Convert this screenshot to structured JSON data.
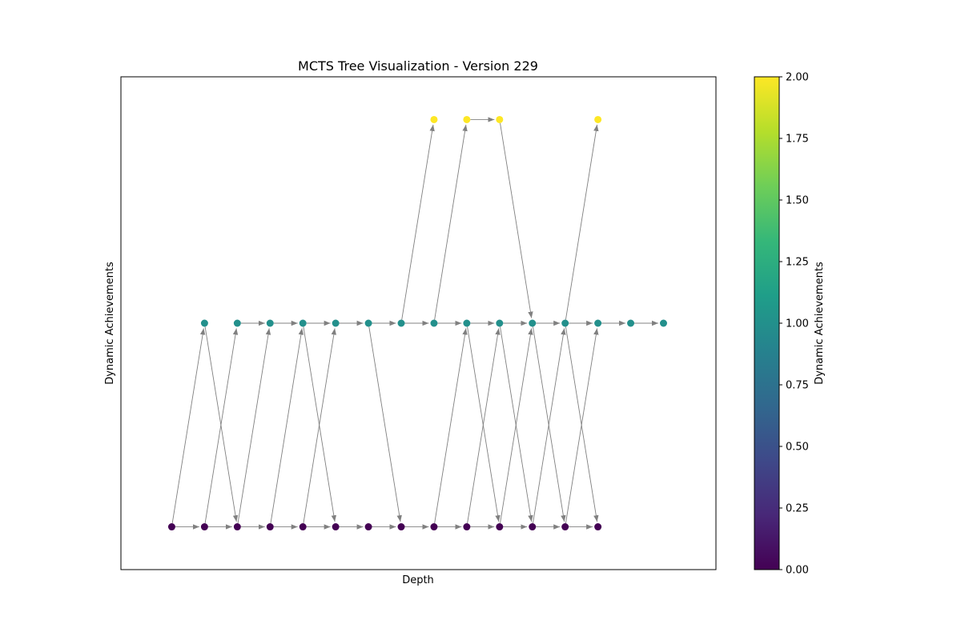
{
  "chart_data": {
    "type": "scatter",
    "title": "MCTS Tree Visualization - Version 229",
    "xlabel": "Depth",
    "ylabel": "Dynamic Achievements",
    "xlim": [
      -1.55,
      16.6
    ],
    "ylim": [
      -0.21,
      2.21
    ],
    "x_ticks_visible": false,
    "y_ticks_visible": false,
    "grid": false,
    "nodes": [
      {
        "x": 0,
        "y": 0
      },
      {
        "x": 1,
        "y": 0
      },
      {
        "x": 2,
        "y": 0
      },
      {
        "x": 3,
        "y": 0
      },
      {
        "x": 4,
        "y": 0
      },
      {
        "x": 5,
        "y": 0
      },
      {
        "x": 6,
        "y": 0
      },
      {
        "x": 7,
        "y": 0
      },
      {
        "x": 8,
        "y": 0
      },
      {
        "x": 9,
        "y": 0
      },
      {
        "x": 10,
        "y": 0
      },
      {
        "x": 11,
        "y": 0
      },
      {
        "x": 12,
        "y": 0
      },
      {
        "x": 13,
        "y": 0
      },
      {
        "x": 1,
        "y": 1
      },
      {
        "x": 2,
        "y": 1
      },
      {
        "x": 3,
        "y": 1
      },
      {
        "x": 4,
        "y": 1
      },
      {
        "x": 5,
        "y": 1
      },
      {
        "x": 6,
        "y": 1
      },
      {
        "x": 7,
        "y": 1
      },
      {
        "x": 8,
        "y": 1
      },
      {
        "x": 9,
        "y": 1
      },
      {
        "x": 10,
        "y": 1
      },
      {
        "x": 11,
        "y": 1
      },
      {
        "x": 12,
        "y": 1
      },
      {
        "x": 13,
        "y": 1
      },
      {
        "x": 14,
        "y": 1
      },
      {
        "x": 15,
        "y": 1
      },
      {
        "x": 8,
        "y": 2
      },
      {
        "x": 9,
        "y": 2
      },
      {
        "x": 10,
        "y": 2
      },
      {
        "x": 13,
        "y": 2
      }
    ],
    "edges": [
      {
        "from": [
          0,
          0
        ],
        "to": [
          1,
          0
        ]
      },
      {
        "from": [
          1,
          0
        ],
        "to": [
          2,
          0
        ]
      },
      {
        "from": [
          2,
          0
        ],
        "to": [
          3,
          0
        ]
      },
      {
        "from": [
          3,
          0
        ],
        "to": [
          4,
          0
        ]
      },
      {
        "from": [
          4,
          0
        ],
        "to": [
          5,
          0
        ]
      },
      {
        "from": [
          5,
          0
        ],
        "to": [
          6,
          0
        ]
      },
      {
        "from": [
          6,
          0
        ],
        "to": [
          7,
          0
        ]
      },
      {
        "from": [
          7,
          0
        ],
        "to": [
          8,
          0
        ]
      },
      {
        "from": [
          8,
          0
        ],
        "to": [
          9,
          0
        ]
      },
      {
        "from": [
          9,
          0
        ],
        "to": [
          10,
          0
        ]
      },
      {
        "from": [
          10,
          0
        ],
        "to": [
          11,
          0
        ]
      },
      {
        "from": [
          11,
          0
        ],
        "to": [
          12,
          0
        ]
      },
      {
        "from": [
          12,
          0
        ],
        "to": [
          13,
          0
        ]
      },
      {
        "from": [
          2,
          1
        ],
        "to": [
          3,
          1
        ]
      },
      {
        "from": [
          3,
          1
        ],
        "to": [
          4,
          1
        ]
      },
      {
        "from": [
          4,
          1
        ],
        "to": [
          5,
          1
        ]
      },
      {
        "from": [
          5,
          1
        ],
        "to": [
          6,
          1
        ]
      },
      {
        "from": [
          6,
          1
        ],
        "to": [
          7,
          1
        ]
      },
      {
        "from": [
          7,
          1
        ],
        "to": [
          8,
          1
        ]
      },
      {
        "from": [
          8,
          1
        ],
        "to": [
          9,
          1
        ]
      },
      {
        "from": [
          9,
          1
        ],
        "to": [
          10,
          1
        ]
      },
      {
        "from": [
          10,
          1
        ],
        "to": [
          11,
          1
        ]
      },
      {
        "from": [
          11,
          1
        ],
        "to": [
          12,
          1
        ]
      },
      {
        "from": [
          12,
          1
        ],
        "to": [
          13,
          1
        ]
      },
      {
        "from": [
          13,
          1
        ],
        "to": [
          14,
          1
        ]
      },
      {
        "from": [
          14,
          1
        ],
        "to": [
          15,
          1
        ]
      },
      {
        "from": [
          9,
          2
        ],
        "to": [
          10,
          2
        ]
      },
      {
        "from": [
          0,
          0
        ],
        "to": [
          1,
          1
        ]
      },
      {
        "from": [
          1,
          0
        ],
        "to": [
          2,
          1
        ]
      },
      {
        "from": [
          2,
          0
        ],
        "to": [
          3,
          1
        ]
      },
      {
        "from": [
          3,
          0
        ],
        "to": [
          4,
          1
        ]
      },
      {
        "from": [
          4,
          0
        ],
        "to": [
          5,
          1
        ]
      },
      {
        "from": [
          8,
          0
        ],
        "to": [
          9,
          1
        ]
      },
      {
        "from": [
          9,
          0
        ],
        "to": [
          10,
          1
        ]
      },
      {
        "from": [
          10,
          0
        ],
        "to": [
          11,
          1
        ]
      },
      {
        "from": [
          11,
          0
        ],
        "to": [
          12,
          1
        ]
      },
      {
        "from": [
          12,
          0
        ],
        "to": [
          13,
          1
        ]
      },
      {
        "from": [
          1,
          1
        ],
        "to": [
          2,
          0
        ]
      },
      {
        "from": [
          4,
          1
        ],
        "to": [
          5,
          0
        ]
      },
      {
        "from": [
          6,
          1
        ],
        "to": [
          7,
          0
        ]
      },
      {
        "from": [
          9,
          1
        ],
        "to": [
          10,
          0
        ]
      },
      {
        "from": [
          10,
          1
        ],
        "to": [
          11,
          0
        ]
      },
      {
        "from": [
          11,
          1
        ],
        "to": [
          12,
          0
        ]
      },
      {
        "from": [
          12,
          1
        ],
        "to": [
          13,
          0
        ]
      },
      {
        "from": [
          7,
          1
        ],
        "to": [
          8,
          2
        ]
      },
      {
        "from": [
          8,
          1
        ],
        "to": [
          9,
          2
        ]
      },
      {
        "from": [
          12,
          1
        ],
        "to": [
          13,
          2
        ]
      },
      {
        "from": [
          10,
          2
        ],
        "to": [
          11,
          1
        ]
      }
    ],
    "colorbar": {
      "label": "Dynamic Achievements",
      "colormap": "viridis",
      "min": 0,
      "max": 2,
      "ticks": [
        "0.00",
        "0.25",
        "0.50",
        "0.75",
        "1.00",
        "1.25",
        "1.50",
        "1.75",
        "2.00"
      ]
    },
    "colors": {
      "edge": "#808080",
      "viridis_stops": [
        "#440154",
        "#482878",
        "#3e4989",
        "#31688e",
        "#26828e",
        "#1f9e89",
        "#35b779",
        "#6ece58",
        "#b5de2b",
        "#fde725"
      ]
    }
  }
}
